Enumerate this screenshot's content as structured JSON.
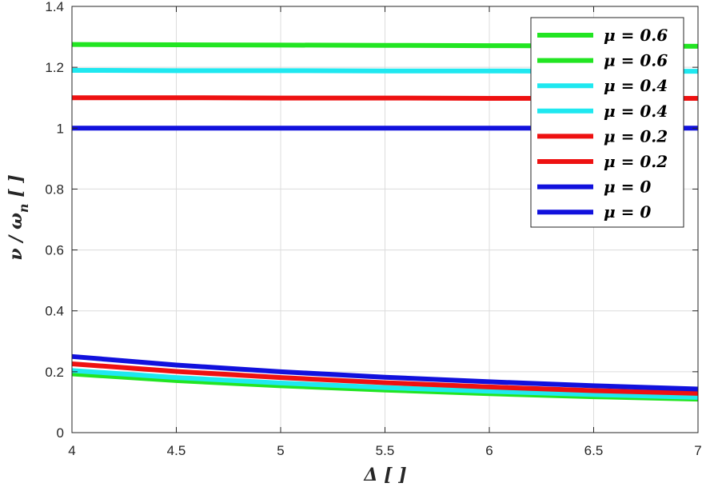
{
  "chart_data": {
    "type": "line",
    "xlabel": "Δ  [ ]",
    "ylabel": "ν / ω",
    "ylabel_sub": "n",
    "ylabel_unit": " [ ]",
    "xlim": [
      4,
      7
    ],
    "ylim": [
      0,
      1.4
    ],
    "xticks": [
      4,
      4.5,
      5,
      5.5,
      6,
      6.5,
      7
    ],
    "xtick_labels": [
      "4",
      "4.5",
      "5",
      "5.5",
      "6",
      "6.5",
      "7"
    ],
    "yticks": [
      0,
      0.2,
      0.4,
      0.6,
      0.8,
      1,
      1.2,
      1.4
    ],
    "ytick_labels": [
      "0",
      "0.2",
      "0.4",
      "0.6",
      "0.8",
      "1",
      "1.2",
      "1.4"
    ],
    "grid": true,
    "legend_position": "top-right",
    "x": [
      4,
      4.5,
      5,
      5.5,
      6,
      6.5,
      7
    ],
    "series": [
      {
        "name": "μ = 0.6",
        "color": "#22e522",
        "values": [
          1.275,
          1.274,
          1.273,
          1.272,
          1.271,
          1.27,
          1.269
        ]
      },
      {
        "name": "μ = 0.6",
        "color": "#22e522",
        "values": [
          0.193,
          0.171,
          0.154,
          0.14,
          0.128,
          0.118,
          0.11
        ]
      },
      {
        "name": "μ = 0.4",
        "color": "#1fe8f0",
        "values": [
          1.19,
          1.189,
          1.189,
          1.188,
          1.188,
          1.187,
          1.187
        ]
      },
      {
        "name": "μ = 0.4",
        "color": "#1fe8f0",
        "values": [
          0.204,
          0.181,
          0.163,
          0.148,
          0.136,
          0.125,
          0.116
        ]
      },
      {
        "name": "μ = 0.2",
        "color": "#ee1111",
        "values": [
          1.1,
          1.1,
          1.099,
          1.099,
          1.098,
          1.098,
          1.098
        ]
      },
      {
        "name": "μ = 0.2",
        "color": "#ee1111",
        "values": [
          0.226,
          0.201,
          0.181,
          0.164,
          0.15,
          0.138,
          0.129
        ]
      },
      {
        "name": "μ = 0",
        "color": "#1111dd",
        "values": [
          1.0,
          1.0,
          1.0,
          1.0,
          1.0,
          1.0,
          1.0
        ]
      },
      {
        "name": "μ = 0",
        "color": "#1111dd",
        "values": [
          0.25,
          0.222,
          0.2,
          0.182,
          0.167,
          0.154,
          0.143
        ]
      }
    ]
  }
}
